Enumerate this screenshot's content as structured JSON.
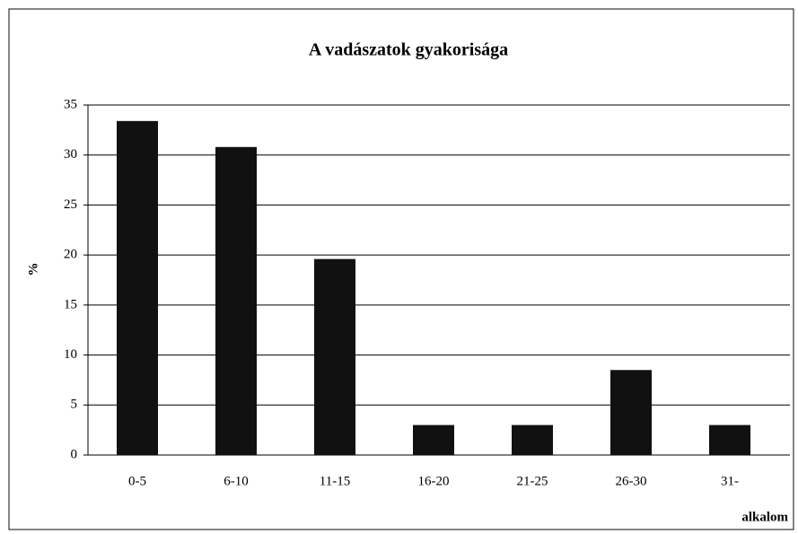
{
  "chart_data": {
    "type": "bar",
    "title": "A vadászatok gyakorisága",
    "y_label": "%",
    "x_label": "alkalom",
    "categories": [
      "0-5",
      "6-10",
      "11-15",
      "16-20",
      "21-25",
      "26-30",
      "31-"
    ],
    "values": [
      33.4,
      30.8,
      19.6,
      3,
      3,
      8.5,
      3
    ],
    "color": "#111111",
    "ylim": [
      0,
      35
    ],
    "yticks": [
      0,
      5,
      10,
      15,
      20,
      25,
      30,
      35
    ],
    "grid": true
  }
}
